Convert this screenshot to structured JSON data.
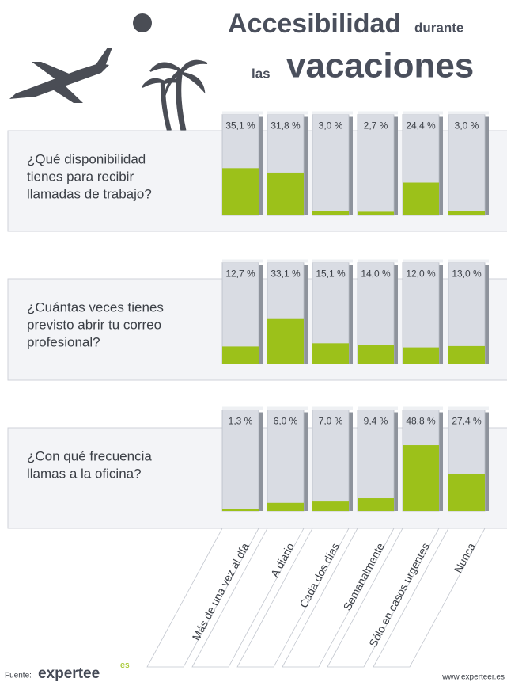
{
  "title": {
    "line1": [
      "Accesibilidad",
      "durante"
    ],
    "line2": [
      "las",
      "vacaciones"
    ]
  },
  "chart_data": [
    {
      "type": "bar",
      "title": [
        "¿Qué disponibilidad",
        "tienes para recibir",
        "llamadas de trabajo?"
      ],
      "values": [
        35.1,
        31.8,
        3.0,
        2.7,
        24.4,
        3.0
      ],
      "value_labels": [
        "35,1 %",
        "31,8 %",
        "3,0 %",
        "2,7 %",
        "24,4 %",
        "3,0 %"
      ],
      "color": "#9cc11a",
      "ylim": [
        0,
        75
      ]
    },
    {
      "type": "bar",
      "title": [
        "¿Cuántas veces tienes",
        "previsto abrir tu correo",
        "profesional?"
      ],
      "values": [
        12.7,
        33.1,
        15.1,
        14.0,
        12.0,
        13.0
      ],
      "value_labels": [
        "12,7 %",
        "33,1 %",
        "15,1 %",
        "14,0 %",
        "12,0 %",
        "13,0 %"
      ],
      "color": "#9cc11a",
      "ylim": [
        0,
        75
      ]
    },
    {
      "type": "bar",
      "title": [
        "¿Con qué frecuencia",
        "llamas a la oficina?"
      ],
      "categories": [
        "Más de una vez al día",
        "A diario",
        "Cada dos días",
        "Semanalmente",
        "Sólo en casos urgentes",
        "Nunca"
      ],
      "values": [
        1.3,
        6.0,
        7.0,
        9.4,
        48.8,
        27.4
      ],
      "value_labels": [
        "1,3 %",
        "6,0 %",
        "7,0 %",
        "9,4 %",
        "48,8 %",
        "27,4 %"
      ],
      "color": "#9cc11a",
      "ylim": [
        0,
        75
      ]
    }
  ],
  "source": {
    "label": "Fuente:",
    "brand": "expertee",
    "brand_sup": "es",
    "url": "www.experteer.es"
  }
}
